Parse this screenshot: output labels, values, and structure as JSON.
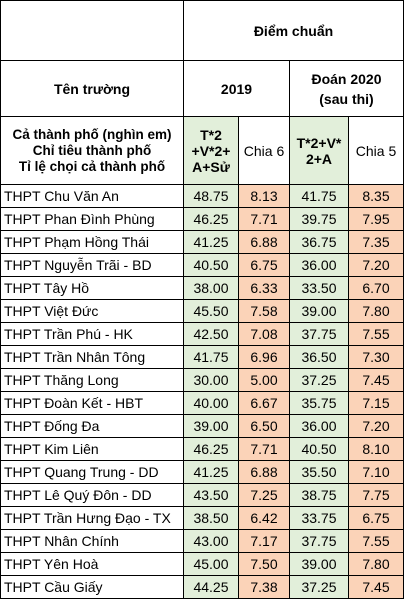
{
  "header": {
    "school_col": "Tên trường",
    "score_group": "Điểm chuẩn",
    "year_2019": "2019",
    "forecast_2020": "Đoán 2020\n(sau thi)"
  },
  "info_lines": [
    "Cả thành phố (nghìn em)",
    "Chỉ tiêu thành phố",
    "Tỉ lệ chọi cả thành phố"
  ],
  "subheaders": {
    "formula_2019": "T*2 +V*2+ A+Sử",
    "divide6": "Chia 6",
    "formula_2020": "T*2+V* 2+A",
    "divide5": "Chia 5"
  },
  "rows": [
    {
      "school": "THPT Chu Văn An",
      "s2019": "48.75",
      "d6": "8.13",
      "s2020": "41.75",
      "d5": "8.35"
    },
    {
      "school": "THPT Phan Đình Phùng",
      "s2019": "46.25",
      "d6": "7.71",
      "s2020": "39.75",
      "d5": "7.95"
    },
    {
      "school": "THPT Phạm Hồng Thái",
      "s2019": "41.25",
      "d6": "6.88",
      "s2020": "36.75",
      "d5": "7.35"
    },
    {
      "school": "THPT Nguyễn Trãi - BD",
      "s2019": "40.50",
      "d6": "6.75",
      "s2020": "36.00",
      "d5": "7.20"
    },
    {
      "school": "THPT Tây Hồ",
      "s2019": "38.00",
      "d6": "6.33",
      "s2020": "33.50",
      "d5": "6.70"
    },
    {
      "school": "THPT Việt Đức",
      "s2019": "45.50",
      "d6": "7.58",
      "s2020": "39.00",
      "d5": "7.80"
    },
    {
      "school": "THPT Trần Phú - HK",
      "s2019": "42.50",
      "d6": "7.08",
      "s2020": "37.75",
      "d5": "7.55"
    },
    {
      "school": "THPT Trần Nhân Tông",
      "s2019": "41.75",
      "d6": "6.96",
      "s2020": "36.50",
      "d5": "7.30"
    },
    {
      "school": "THPT Thăng Long",
      "s2019": "30.00",
      "d6": "5.00",
      "s2020": "37.25",
      "d5": "7.45"
    },
    {
      "school": "THPT Đoàn Kết - HBT",
      "s2019": "40.00",
      "d6": "6.67",
      "s2020": "35.75",
      "d5": "7.15"
    },
    {
      "school": "THPT Đống Đa",
      "s2019": "39.00",
      "d6": "6.50",
      "s2020": "36.00",
      "d5": "7.20"
    },
    {
      "school": "THPT Kim Liên",
      "s2019": "46.25",
      "d6": "7.71",
      "s2020": "40.50",
      "d5": "8.10"
    },
    {
      "school": "THPT Quang Trung - DD",
      "s2019": "41.25",
      "d6": "6.88",
      "s2020": "35.50",
      "d5": "7.10"
    },
    {
      "school": "THPT Lê Quý Đôn - DD",
      "s2019": "43.50",
      "d6": "7.25",
      "s2020": "38.75",
      "d5": "7.75"
    },
    {
      "school": "THPT Trần Hưng Đạo - TX",
      "s2019": "38.50",
      "d6": "6.42",
      "s2020": "33.75",
      "d5": "6.75"
    },
    {
      "school": "THPT Nhân Chính",
      "s2019": "43.00",
      "d6": "7.17",
      "s2020": "37.75",
      "d5": "7.55"
    },
    {
      "school": "THPT Yên Hoà",
      "s2019": "45.00",
      "d6": "7.50",
      "s2020": "39.00",
      "d5": "7.80"
    },
    {
      "school": "THPT Cầu Giấy",
      "s2019": "44.25",
      "d6": "7.38",
      "s2020": "37.25",
      "d5": "7.45"
    }
  ],
  "colors": {
    "green_cell": "#e2efda",
    "peach_cell": "#fbd3b8",
    "border": "#000000"
  }
}
